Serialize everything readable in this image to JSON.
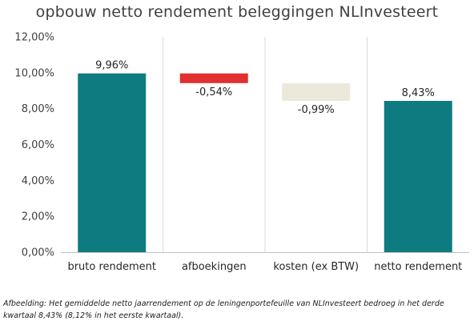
{
  "chart_data": {
    "type": "bar",
    "subtype": "waterfall",
    "title": "opbouw netto rendement beleggingen NLInvesteert",
    "xlabel": "",
    "ylabel": "",
    "ylim": [
      0,
      12
    ],
    "grid": false,
    "y_ticks": [
      "0,00%",
      "2,00%",
      "4,00%",
      "6,00%",
      "8,00%",
      "10,00%",
      "12,00%"
    ],
    "categories": [
      "bruto rendement",
      "afboekingen",
      "kosten (ex BTW)",
      "netto rendement"
    ],
    "values": [
      9.96,
      -0.54,
      -0.99,
      8.43
    ],
    "data_labels": [
      "9,96%",
      "-0,54%",
      "-0,99%",
      "8,43%"
    ],
    "bars": [
      {
        "start": 0,
        "end": 9.96,
        "color": "#0E7B80"
      },
      {
        "start": 9.42,
        "end": 9.96,
        "color": "#E0302F"
      },
      {
        "start": 8.43,
        "end": 9.42,
        "color": "#ECE8DA"
      },
      {
        "start": 0,
        "end": 8.43,
        "color": "#0E7B80"
      }
    ]
  },
  "caption": "Afbeelding: Het gemiddelde netto jaarrendement op de leningenportefeuille van NLInvesteert bedroeg in het derde kwartaal 8,43% (8,12% in het eerste kwartaal)."
}
